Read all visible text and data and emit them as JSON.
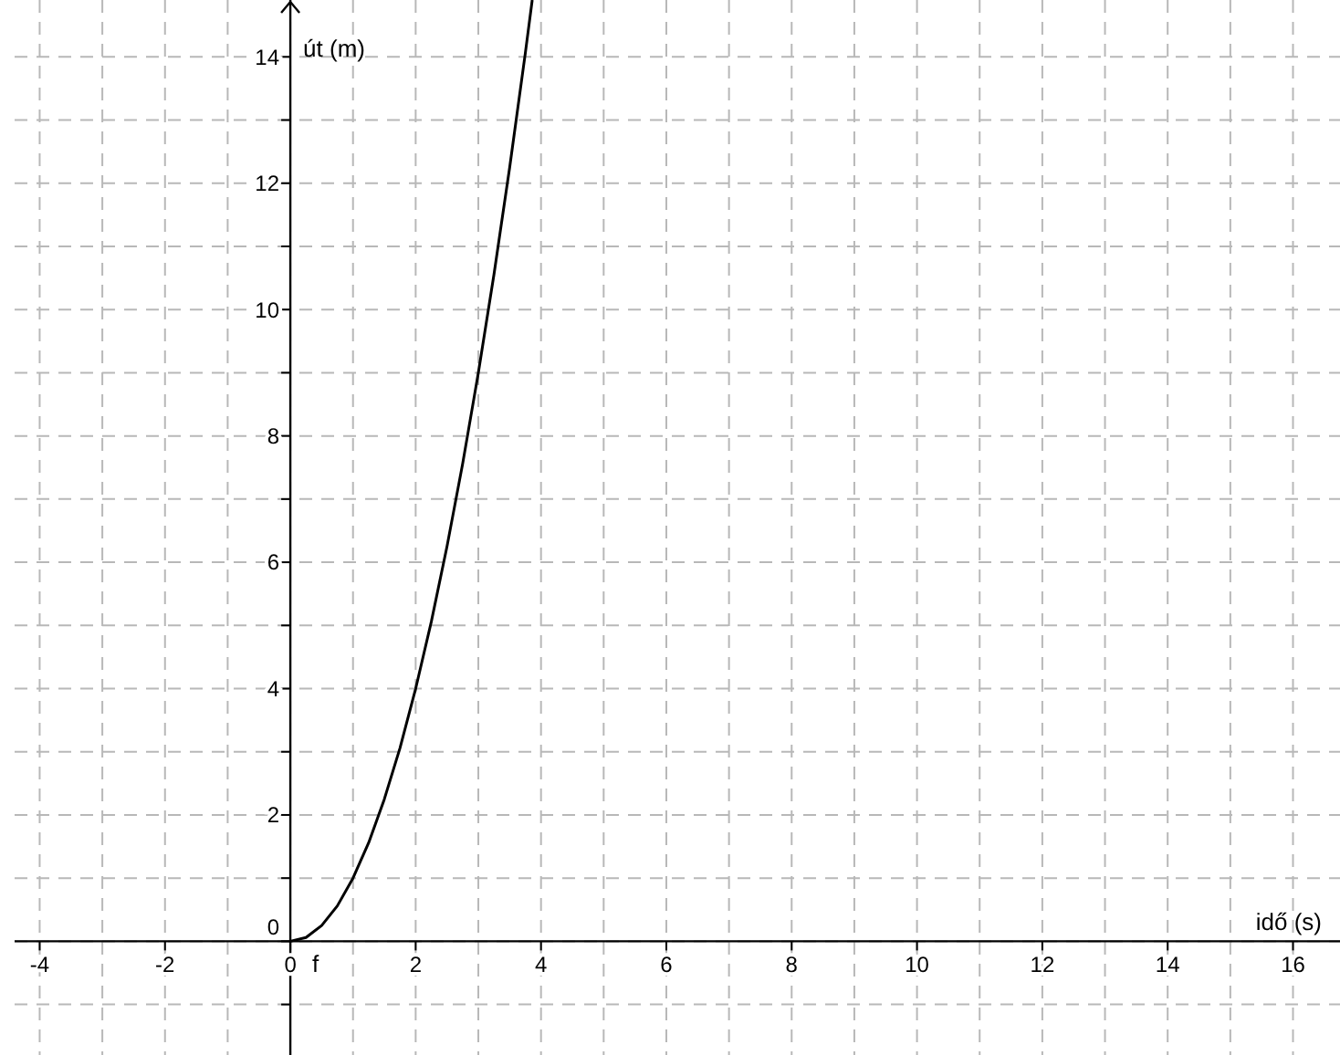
{
  "chart_data": {
    "type": "line",
    "xlabel": "idő (s)",
    "ylabel": "út (m)",
    "x": [
      0,
      0.25,
      0.5,
      0.75,
      1,
      1.25,
      1.5,
      1.75,
      2,
      2.25,
      2.5,
      2.75,
      3,
      3.25,
      3.5,
      3.75,
      3.86
    ],
    "series": [
      {
        "name": "f",
        "color": "#000000",
        "values": [
          0,
          0.06,
          0.25,
          0.56,
          1,
          1.56,
          2.25,
          3.06,
          4,
          5.06,
          6.25,
          7.56,
          9,
          10.56,
          12.25,
          14.06,
          14.9
        ]
      }
    ],
    "xlim": [
      -4.4,
      16.75
    ],
    "ylim": [
      -1.8,
      14.9
    ],
    "xticks": [
      -4,
      {
        "value": -3,
        "label": null
      },
      -2,
      {
        "value": -1,
        "label": null
      },
      0,
      {
        "value": 1,
        "label": null
      },
      2,
      {
        "value": 3,
        "label": null
      },
      4,
      {
        "value": 5,
        "label": null
      },
      6,
      {
        "value": 7,
        "label": null
      },
      8,
      {
        "value": 9,
        "label": null
      },
      10,
      {
        "value": 11,
        "label": null
      },
      12,
      {
        "value": 13,
        "label": null
      },
      14,
      {
        "value": 15,
        "label": null
      },
      16
    ],
    "yticks": [
      {
        "value": -1,
        "label": null
      },
      0,
      {
        "value": 1,
        "label": null
      },
      2,
      {
        "value": 3,
        "label": null
      },
      4,
      {
        "value": 5,
        "label": null
      },
      6,
      {
        "value": 7,
        "label": null
      },
      8,
      {
        "value": 9,
        "label": null
      },
      10,
      {
        "value": 11,
        "label": null
      },
      12,
      {
        "value": 13,
        "label": null
      },
      14
    ],
    "grid": true,
    "marker": "none",
    "line_style": "solid",
    "legend": false
  }
}
